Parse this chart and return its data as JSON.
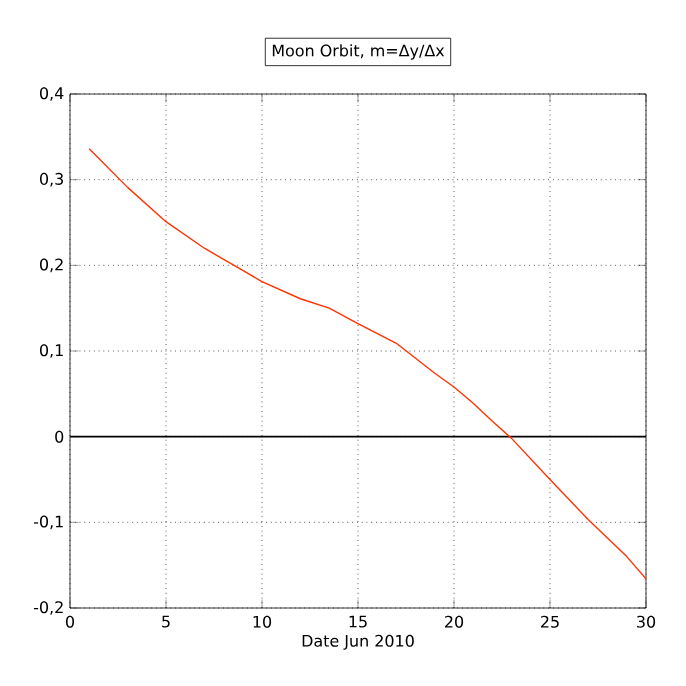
{
  "chart_data": {
    "type": "line",
    "title": "Moon Orbit, m=Δy/Δx",
    "xlabel": "Date Jun 2010",
    "series": [
      {
        "color": "#ff3300",
        "x": [
          1,
          3,
          5,
          7,
          9,
          10,
          12,
          13.5,
          15,
          17,
          19,
          20,
          21,
          22,
          23,
          25,
          27,
          29,
          30
        ],
        "values": [
          0.336,
          0.291,
          0.251,
          0.22,
          0.194,
          0.181,
          0.161,
          0.15,
          0.132,
          0.109,
          0.074,
          0.058,
          0.039,
          0.018,
          -0.002,
          -0.05,
          -0.097,
          -0.14,
          -0.166
        ]
      }
    ],
    "xlim": [
      0,
      30
    ],
    "xticks": [
      0,
      5,
      10,
      15,
      20,
      25,
      30
    ],
    "ylim": [
      -0.2,
      0.4
    ],
    "yticks": [
      {
        "value": -0.2,
        "label": "-0,2"
      },
      {
        "value": -0.1,
        "label": "-0,1"
      },
      0,
      {
        "value": 0.1,
        "label": "0,1"
      },
      {
        "value": 0.2,
        "label": "0,2"
      },
      {
        "value": 0.3,
        "label": "0,3"
      },
      {
        "value": 0.4,
        "label": "0,4"
      }
    ],
    "grid": true,
    "marker": "none",
    "line_style": "solid",
    "ref_lines": [
      {
        "axis": "y",
        "value": 0,
        "color": "#000000"
      }
    ]
  }
}
